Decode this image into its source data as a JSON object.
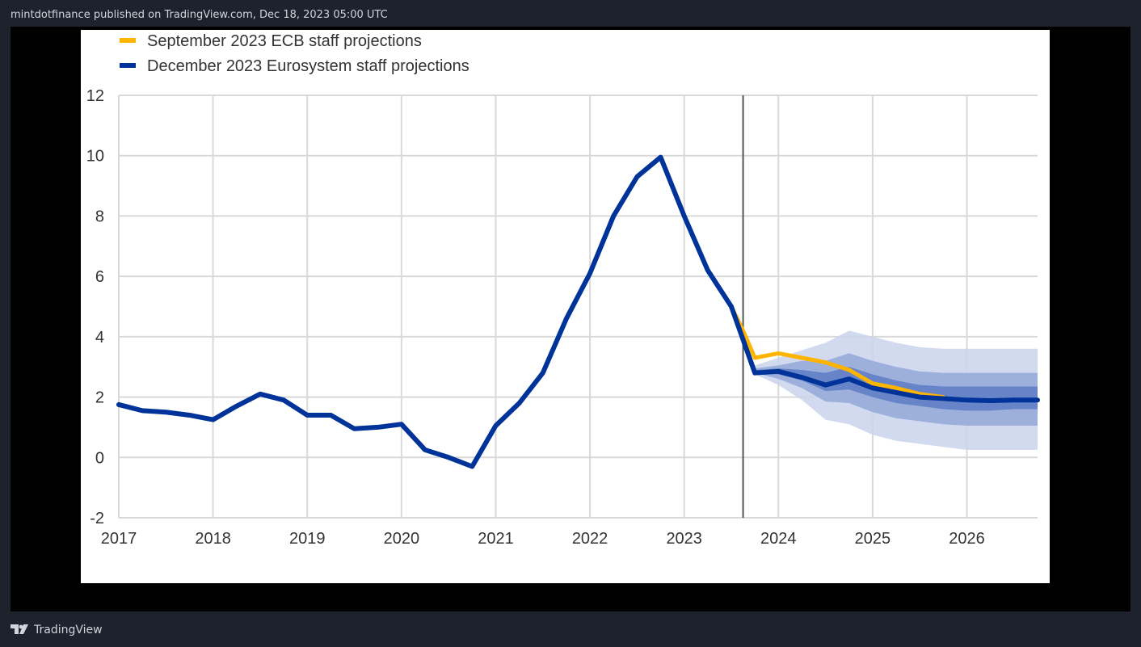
{
  "header": {
    "publish_line": "mintdotfinance published on TradingView.com, Dec 18, 2023 05:00 UTC"
  },
  "footer": {
    "brand": "TradingView",
    "logo_icon": "tradingview-logo-icon"
  },
  "colors": {
    "page_bg": "#1e222d",
    "frame_bg": "#000000",
    "panel_bg": "#ffffff",
    "september": "#ffb400",
    "december": "#003399",
    "band_outer": "#c9d3ec",
    "band_middle": "#94a8d8",
    "band_inner": "#5f7dc4",
    "grid": "#d9d9d9",
    "divider": "#555555"
  },
  "chart_data": {
    "type": "line",
    "title": "",
    "xlabel": "",
    "ylabel": "",
    "ylim": [
      -2,
      12
    ],
    "yticks": [
      -2,
      0,
      2,
      4,
      6,
      8,
      10,
      12
    ],
    "xticks": [
      "2017",
      "2018",
      "2019",
      "2020",
      "2021",
      "2022",
      "2023",
      "2024",
      "2025",
      "2026"
    ],
    "xlim": [
      2017.0,
      2026.75
    ],
    "grid": true,
    "legend_position": "top-left",
    "projection_start": 2023.625,
    "series": [
      {
        "name": "September 2023 ECB staff projections",
        "color": "#ffb400",
        "points": [
          [
            2023.5,
            5.0
          ],
          [
            2023.625,
            4.2
          ],
          [
            2023.75,
            3.3
          ],
          [
            2024.0,
            3.45
          ],
          [
            2024.25,
            3.3
          ],
          [
            2024.5,
            3.15
          ],
          [
            2024.75,
            2.9
          ],
          [
            2025.0,
            2.45
          ],
          [
            2025.25,
            2.3
          ],
          [
            2025.5,
            2.1
          ],
          [
            2025.75,
            2.0
          ]
        ]
      },
      {
        "name": "December 2023 Eurosystem staff projections",
        "color": "#003399",
        "points": [
          [
            2017.0,
            1.75
          ],
          [
            2017.25,
            1.55
          ],
          [
            2017.5,
            1.5
          ],
          [
            2017.75,
            1.4
          ],
          [
            2018.0,
            1.25
          ],
          [
            2018.25,
            1.7
          ],
          [
            2018.5,
            2.1
          ],
          [
            2018.75,
            1.9
          ],
          [
            2019.0,
            1.4
          ],
          [
            2019.25,
            1.4
          ],
          [
            2019.5,
            0.95
          ],
          [
            2019.75,
            1.0
          ],
          [
            2020.0,
            1.1
          ],
          [
            2020.25,
            0.25
          ],
          [
            2020.5,
            0.0
          ],
          [
            2020.75,
            -0.3
          ],
          [
            2021.0,
            1.05
          ],
          [
            2021.25,
            1.8
          ],
          [
            2021.5,
            2.8
          ],
          [
            2021.75,
            4.6
          ],
          [
            2022.0,
            6.1
          ],
          [
            2022.25,
            8.0
          ],
          [
            2022.5,
            9.3
          ],
          [
            2022.75,
            9.95
          ],
          [
            2023.0,
            8.0
          ],
          [
            2023.25,
            6.2
          ],
          [
            2023.5,
            5.0
          ],
          [
            2023.75,
            2.8
          ],
          [
            2024.0,
            2.85
          ],
          [
            2024.25,
            2.65
          ],
          [
            2024.5,
            2.4
          ],
          [
            2024.75,
            2.6
          ],
          [
            2025.0,
            2.3
          ],
          [
            2025.25,
            2.15
          ],
          [
            2025.5,
            2.0
          ],
          [
            2025.75,
            1.95
          ],
          [
            2026.0,
            1.9
          ],
          [
            2026.25,
            1.88
          ],
          [
            2026.5,
            1.9
          ],
          [
            2026.75,
            1.9
          ]
        ]
      }
    ],
    "uncertainty_bands": {
      "x": [
        2023.75,
        2024.0,
        2024.25,
        2024.5,
        2024.75,
        2025.0,
        2025.25,
        2025.5,
        2025.75,
        2026.0,
        2026.25,
        2026.5,
        2026.75
      ],
      "outer": {
        "upper": [
          3.05,
          3.3,
          3.55,
          3.8,
          4.2,
          4.0,
          3.8,
          3.65,
          3.6,
          3.6,
          3.6,
          3.6,
          3.6
        ],
        "lower": [
          2.75,
          2.4,
          1.9,
          1.25,
          1.1,
          0.75,
          0.55,
          0.45,
          0.35,
          0.25,
          0.25,
          0.25,
          0.25
        ]
      },
      "middle": {
        "upper": [
          2.95,
          3.05,
          3.2,
          3.2,
          3.45,
          3.2,
          3.0,
          2.85,
          2.8,
          2.8,
          2.8,
          2.8,
          2.8
        ],
        "lower": [
          2.8,
          2.6,
          2.3,
          1.85,
          1.8,
          1.5,
          1.3,
          1.2,
          1.1,
          1.05,
          1.05,
          1.05,
          1.05
        ]
      },
      "inner": {
        "upper": [
          2.9,
          2.95,
          2.9,
          2.8,
          3.0,
          2.75,
          2.55,
          2.4,
          2.35,
          2.35,
          2.35,
          2.35,
          2.35
        ],
        "lower": [
          2.8,
          2.75,
          2.55,
          2.2,
          2.25,
          2.0,
          1.8,
          1.7,
          1.6,
          1.55,
          1.55,
          1.6,
          1.6
        ]
      }
    }
  }
}
